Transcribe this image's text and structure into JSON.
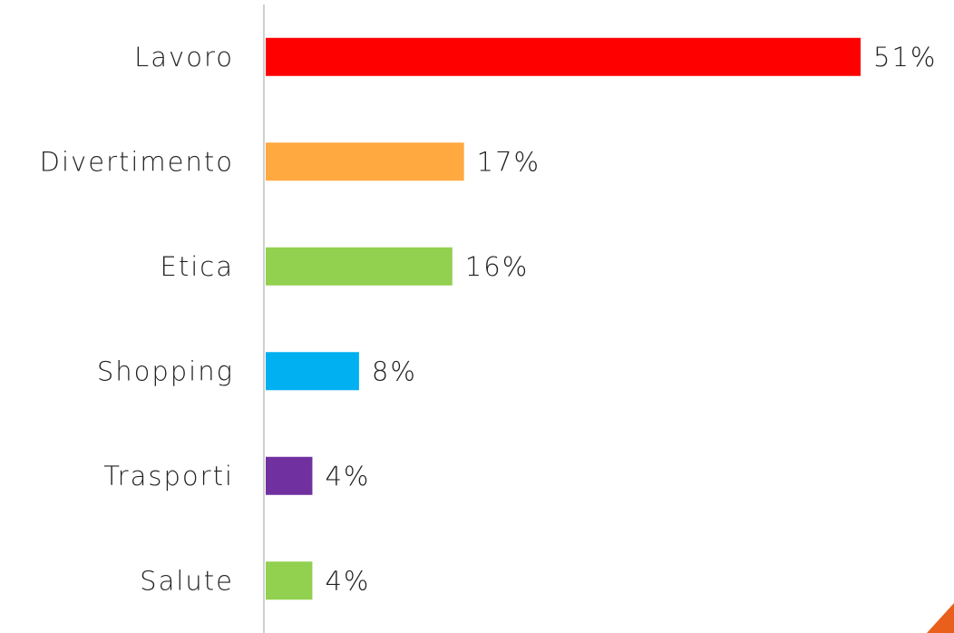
{
  "chart_data": {
    "type": "barh",
    "categories": [
      "Lavoro",
      "Divertimento",
      "Etica",
      "Shopping",
      "Trasporti",
      "Salute"
    ],
    "values": [
      51,
      17,
      16,
      8,
      4,
      4
    ],
    "value_labels": [
      "51%",
      "17%",
      "16%",
      "8%",
      "4%",
      "4%"
    ],
    "colors": [
      "#ff0000",
      "#ffa940",
      "#92d050",
      "#00b0f0",
      "#7030a0",
      "#92d050"
    ]
  }
}
